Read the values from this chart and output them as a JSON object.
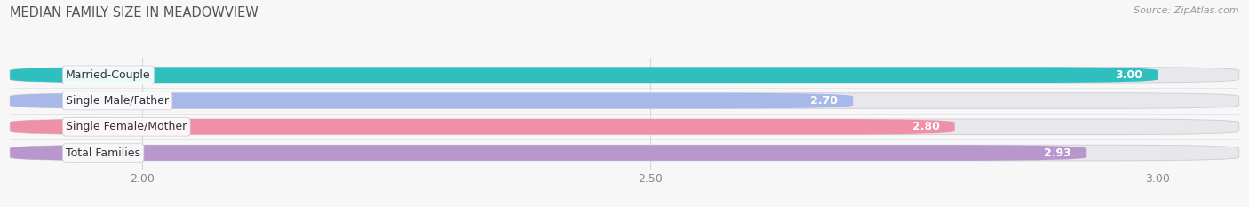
{
  "title": "MEDIAN FAMILY SIZE IN MEADOWVIEW",
  "source": "Source: ZipAtlas.com",
  "categories": [
    "Married-Couple",
    "Single Male/Father",
    "Single Female/Mother",
    "Total Families"
  ],
  "values": [
    3.0,
    2.7,
    2.8,
    2.93
  ],
  "bar_colors": [
    "#30bfbf",
    "#a8b8e8",
    "#f090a8",
    "#b898cc"
  ],
  "bar_bg_color": "#e8e8ec",
  "bg_color": "#f7f7f7",
  "xticks": [
    2.0,
    2.5,
    3.0
  ],
  "xtick_labels": [
    "2.00",
    "2.50",
    "3.00"
  ],
  "xlim_min": 1.87,
  "xlim_max": 3.08,
  "title_fontsize": 10.5,
  "source_fontsize": 8,
  "label_fontsize": 9,
  "value_fontsize": 9,
  "tick_fontsize": 9,
  "bar_height": 0.6
}
